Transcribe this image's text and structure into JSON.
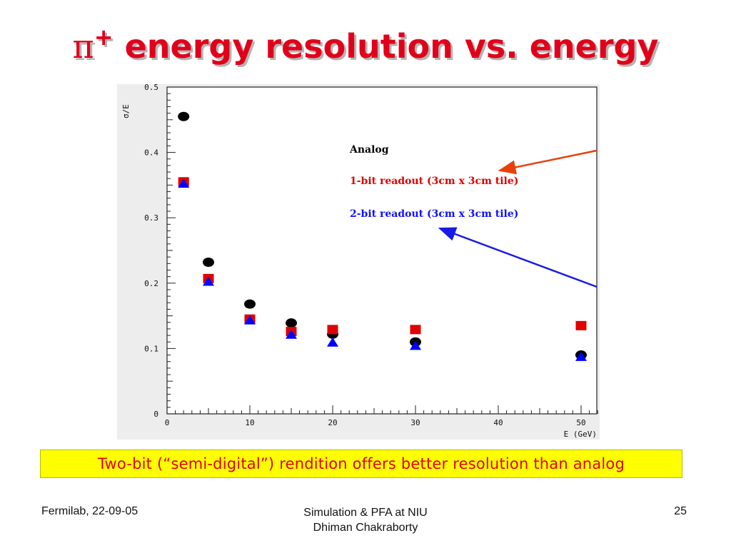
{
  "slide": {
    "title": {
      "symbol": "π",
      "superscript": "+",
      "text": " energy resolution vs. energy"
    },
    "caption": "Two-bit (“semi-digital”) rendition offers better resolution than analog",
    "footer": {
      "left": "Fermilab, 22-09-05",
      "center_line1": "Simulation & PFA at NIU",
      "center_line2": "Dhiman Chakraborty",
      "page": "25"
    },
    "colors": {
      "title": "#e0001a",
      "caption_bg": "#ffff00",
      "caption_text": "#e0001a"
    }
  },
  "chart_data": {
    "type": "scatter",
    "xlabel": "E (GeV)",
    "ylabel": "σ/E",
    "xlim": [
      0,
      52
    ],
    "ylim": [
      0,
      0.5
    ],
    "xticks": [
      0,
      10,
      20,
      30,
      40,
      50
    ],
    "yticks": [
      0,
      0.1,
      0.2,
      0.3,
      0.4,
      0.5
    ],
    "xtick_labels": [
      "0",
      "10",
      "20",
      "30",
      "40",
      "50"
    ],
    "ytick_labels": [
      "0",
      "0.1",
      "0.2",
      "0.3",
      "0.4",
      "0.5"
    ],
    "series": [
      {
        "name": "Analog",
        "marker": "circle",
        "color": "#000000",
        "points": [
          [
            2,
            0.455
          ],
          [
            5,
            0.232
          ],
          [
            10,
            0.168
          ],
          [
            15,
            0.139
          ],
          [
            20,
            0.122
          ],
          [
            30,
            0.11
          ],
          [
            50,
            0.09
          ]
        ]
      },
      {
        "name": "1-bit readout (3cm x 3cm tile)",
        "marker": "square",
        "color": "#e00000",
        "points": [
          [
            2,
            0.355
          ],
          [
            5,
            0.207
          ],
          [
            10,
            0.145
          ],
          [
            15,
            0.126
          ],
          [
            20,
            0.129
          ],
          [
            30,
            0.129
          ],
          [
            50,
            0.135
          ]
        ]
      },
      {
        "name": "2-bit readout (3cm x 3cm tile)",
        "marker": "triangle",
        "color": "#0000ff",
        "points": [
          [
            2,
            0.353
          ],
          [
            5,
            0.203
          ],
          [
            10,
            0.144
          ],
          [
            15,
            0.122
          ],
          [
            20,
            0.11
          ],
          [
            30,
            0.105
          ],
          [
            50,
            0.088
          ]
        ]
      }
    ],
    "legend_position": "upper-right",
    "legend_text_colors": [
      "#000000",
      "#e00000",
      "#1010ff"
    ],
    "grid": false
  }
}
